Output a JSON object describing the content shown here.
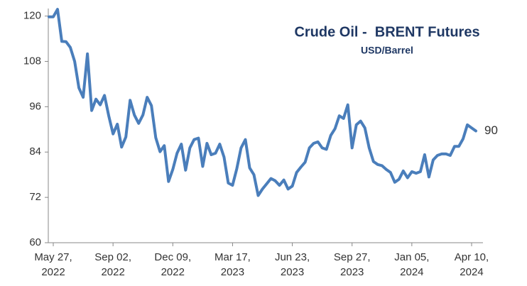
{
  "chart_data": {
    "type": "line",
    "title": "Crude Oil -  BRENT Futures",
    "subtitle": "USD/Barrel",
    "categories": [
      null,
      "May 27,\n2022",
      null,
      null,
      null,
      null,
      null,
      null,
      null,
      null,
      null,
      null,
      null,
      null,
      null,
      "Sep 02,\n2022",
      null,
      null,
      null,
      null,
      null,
      null,
      null,
      null,
      null,
      null,
      null,
      null,
      null,
      "Dec 09,\n2022",
      null,
      null,
      null,
      null,
      null,
      null,
      null,
      null,
      null,
      null,
      null,
      null,
      null,
      "Mar 17,\n2023",
      null,
      null,
      null,
      null,
      null,
      null,
      null,
      null,
      null,
      null,
      null,
      null,
      null,
      "Jun 23,\n2023",
      null,
      null,
      null,
      null,
      null,
      null,
      null,
      null,
      null,
      null,
      null,
      null,
      null,
      "Sep 27,\n2023",
      null,
      null,
      null,
      null,
      null,
      null,
      null,
      null,
      null,
      null,
      null,
      null,
      null,
      "Jan 05,\n2024",
      null,
      null,
      null,
      null,
      null,
      null,
      null,
      null,
      null,
      null,
      null,
      null,
      null,
      "Apr 10,\n2024",
      null
    ],
    "series": [
      {
        "name": "BRENT Futures",
        "color": "#4a7ebb",
        "values": [
          119.8,
          119.8,
          121.8,
          113.3,
          113.2,
          111.7,
          108,
          101,
          98.5,
          110,
          95,
          98,
          96.5,
          99,
          93.6,
          88.8,
          91.4,
          85.3,
          88,
          97.7,
          93.8,
          91.6,
          93.8,
          98.5,
          96.3,
          87.8,
          84.1,
          85.7,
          76.2,
          79.4,
          83.7,
          86.1,
          79.2,
          85.1,
          87.3,
          87.7,
          80.2,
          86.3,
          83.3,
          83.7,
          86.1,
          82.7,
          75.8,
          75.2,
          79.6,
          85.1,
          87.3,
          79.8,
          78,
          72.5,
          74.2,
          75.6,
          77,
          76.4,
          75.2,
          76.6,
          74.2,
          75,
          78.6,
          80,
          81.3,
          85.1,
          86.3,
          86.7,
          85.1,
          84.7,
          88.4,
          90.2,
          93.6,
          92.9,
          96.5,
          85.1,
          91.2,
          92.2,
          90.4,
          85.1,
          81.5,
          80.7,
          80.4,
          79.4,
          78.6,
          76,
          76.8,
          79,
          77.2,
          78.8,
          78.4,
          78.8,
          83.3,
          77.4,
          81.9,
          83.1,
          83.5,
          83.5,
          83.1,
          85.5,
          85.5,
          87.5,
          91.2,
          90.4,
          89.6
        ],
        "value_labels": [
          null,
          null,
          null,
          null,
          null,
          null,
          null,
          null,
          null,
          null,
          null,
          null,
          null,
          null,
          null,
          null,
          null,
          null,
          null,
          null,
          null,
          null,
          null,
          null,
          null,
          null,
          null,
          null,
          null,
          null,
          null,
          null,
          null,
          null,
          null,
          null,
          null,
          null,
          null,
          null,
          null,
          null,
          null,
          null,
          null,
          null,
          null,
          null,
          null,
          null,
          null,
          null,
          null,
          null,
          null,
          null,
          null,
          null,
          null,
          null,
          null,
          null,
          null,
          null,
          null,
          null,
          null,
          null,
          null,
          null,
          null,
          null,
          null,
          null,
          null,
          null,
          null,
          null,
          null,
          null,
          null,
          null,
          null,
          null,
          null,
          null,
          null,
          null,
          null,
          null,
          null,
          null,
          null,
          null,
          null,
          null,
          null,
          null,
          null,
          null,
          "90"
        ]
      }
    ],
    "ylim": [
      60,
      122
    ],
    "yticks": [
      60,
      72,
      84,
      96,
      108,
      120
    ],
    "grid": false
  }
}
